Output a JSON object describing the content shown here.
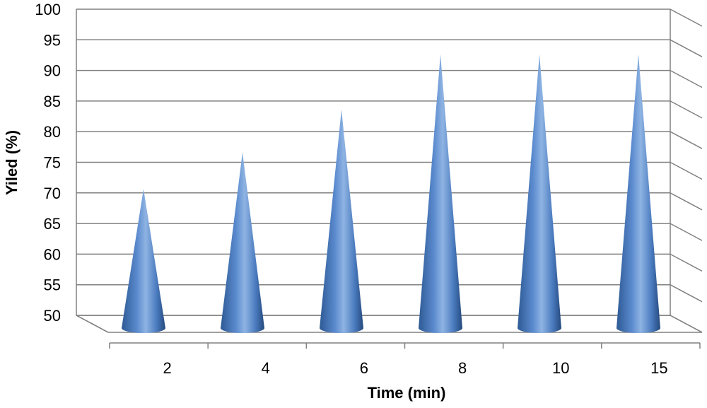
{
  "chart_data": {
    "type": "bar",
    "style": "3d-cone",
    "categories": [
      "2",
      "4",
      "6",
      "8",
      "10",
      "15"
    ],
    "values": [
      71,
      77,
      84,
      93,
      93,
      93
    ],
    "xlabel": "Time (min)",
    "ylabel": "Yiled (%)",
    "ylim": [
      50,
      100
    ],
    "yticks": [
      50,
      55,
      60,
      65,
      70,
      75,
      80,
      85,
      90,
      95,
      100
    ],
    "grid": true,
    "legend": "none",
    "colors": {
      "cone": "#4a7bbf",
      "cone_dark": "#2e5a94",
      "cone_light": "#8fb4e3",
      "grid": "#808080"
    }
  }
}
